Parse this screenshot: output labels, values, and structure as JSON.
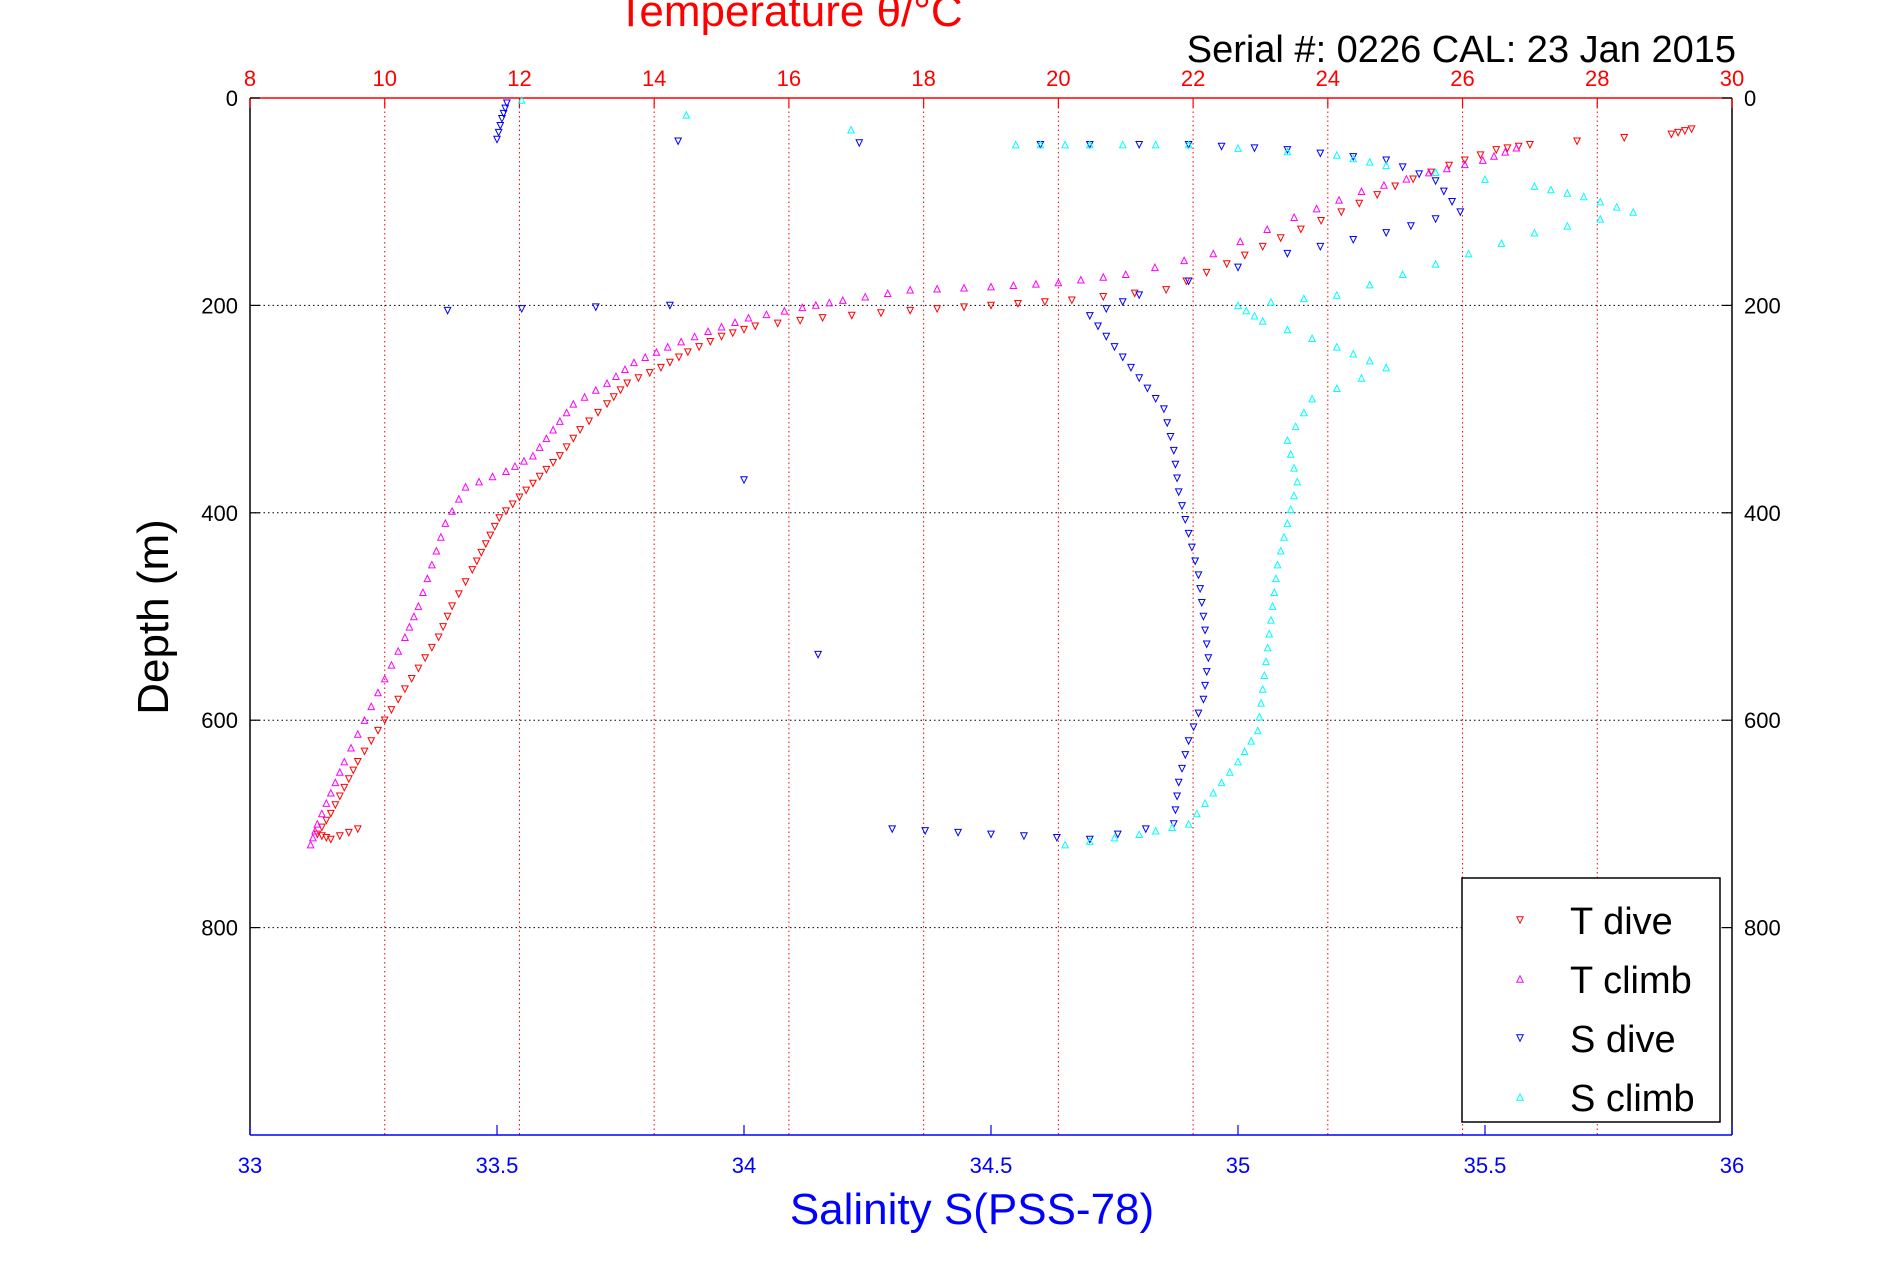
{
  "header": {
    "top_title": "Temperature θ/°C",
    "serial": "Serial #: 0226  CAL: 23 Jan 2015"
  },
  "colors": {
    "temp_axis": "#ff0000",
    "sal_axis": "#0000ff",
    "t_dive": "#ff0000",
    "t_climb": "#ff00ff",
    "s_dive": "#0000ff",
    "s_climb": "#00ffff",
    "grid": "#000000",
    "frame": "#000000"
  },
  "chart_data": {
    "type": "scatter",
    "title": "Temperature θ/°C",
    "ylabel": "Depth (m)",
    "xlabel": "Salinity S(PSS-78)",
    "x_top": {
      "label": "Temperature θ/°C",
      "range": [
        8,
        30
      ],
      "ticks": [
        "8",
        "10",
        "12",
        "14",
        "16",
        "18",
        "20",
        "22",
        "24",
        "26",
        "28",
        "30"
      ]
    },
    "x_bottom": {
      "label": "Salinity S(PSS-78)",
      "range": [
        33,
        36
      ],
      "ticks": [
        "33",
        "33.5",
        "34",
        "34.5",
        "35",
        "35.5",
        "36"
      ]
    },
    "y": {
      "label": "Depth (m)",
      "range": [
        0,
        1000
      ],
      "reversed": true,
      "ticks": [
        "0",
        "200",
        "400",
        "600",
        "800"
      ]
    },
    "grid": true,
    "legend_position": "bottom-right",
    "series": [
      {
        "name": "T dive",
        "axis": "temperature",
        "marker": "triangle-down",
        "points": [
          [
            29.4,
            30
          ],
          [
            29.1,
            35
          ],
          [
            27.0,
            45
          ],
          [
            26.5,
            50
          ],
          [
            25.8,
            65
          ],
          [
            25.0,
            85
          ],
          [
            24.2,
            110
          ],
          [
            23.3,
            135
          ],
          [
            22.5,
            160
          ],
          [
            21.6,
            185
          ],
          [
            20.2,
            195
          ],
          [
            19.0,
            200
          ],
          [
            17.8,
            205
          ],
          [
            16.5,
            212
          ],
          [
            15.5,
            220
          ],
          [
            15.0,
            230
          ],
          [
            14.5,
            245
          ],
          [
            14.1,
            260
          ],
          [
            13.6,
            275
          ],
          [
            13.3,
            295
          ],
          [
            12.9,
            320
          ],
          [
            12.6,
            345
          ],
          [
            12.3,
            365
          ],
          [
            12.0,
            385
          ],
          [
            11.7,
            405
          ],
          [
            11.5,
            430
          ],
          [
            11.3,
            455
          ],
          [
            11.0,
            490
          ],
          [
            10.8,
            520
          ],
          [
            10.5,
            550
          ],
          [
            10.2,
            580
          ],
          [
            9.9,
            610
          ],
          [
            9.6,
            640
          ],
          [
            9.4,
            665
          ],
          [
            9.2,
            690
          ],
          [
            9.0,
            710
          ],
          [
            9.2,
            715
          ],
          [
            9.6,
            705
          ]
        ]
      },
      {
        "name": "T climb",
        "axis": "temperature",
        "marker": "triangle-up",
        "points": [
          [
            26.8,
            48
          ],
          [
            26.3,
            60
          ],
          [
            25.5,
            72
          ],
          [
            24.5,
            90
          ],
          [
            23.5,
            115
          ],
          [
            22.3,
            150
          ],
          [
            21.0,
            170
          ],
          [
            20.0,
            178
          ],
          [
            19.0,
            182
          ],
          [
            17.8,
            185
          ],
          [
            16.8,
            195
          ],
          [
            16.2,
            202
          ],
          [
            15.4,
            212
          ],
          [
            14.8,
            225
          ],
          [
            14.2,
            240
          ],
          [
            13.7,
            255
          ],
          [
            13.3,
            275
          ],
          [
            12.8,
            295
          ],
          [
            12.5,
            320
          ],
          [
            12.2,
            345
          ],
          [
            11.8,
            360
          ],
          [
            11.2,
            375
          ],
          [
            10.9,
            410
          ],
          [
            10.7,
            450
          ],
          [
            10.5,
            490
          ],
          [
            10.3,
            520
          ],
          [
            10.0,
            560
          ],
          [
            9.7,
            600
          ],
          [
            9.4,
            640
          ],
          [
            9.2,
            670
          ],
          [
            9.0,
            700
          ],
          [
            8.9,
            720
          ]
        ]
      },
      {
        "name": "S dive",
        "axis": "salinity",
        "marker": "triangle-down",
        "points": [
          [
            33.52,
            5
          ],
          [
            33.51,
            20
          ],
          [
            33.5,
            40
          ],
          [
            34.6,
            45
          ],
          [
            34.9,
            45
          ],
          [
            35.1,
            50
          ],
          [
            35.3,
            60
          ],
          [
            35.4,
            80
          ],
          [
            35.45,
            110
          ],
          [
            35.3,
            130
          ],
          [
            35.1,
            150
          ],
          [
            34.8,
            190
          ],
          [
            34.7,
            210
          ],
          [
            34.75,
            240
          ],
          [
            34.8,
            270
          ],
          [
            34.85,
            300
          ],
          [
            34.87,
            340
          ],
          [
            34.88,
            380
          ],
          [
            34.9,
            420
          ],
          [
            34.92,
            460
          ],
          [
            34.93,
            500
          ],
          [
            34.94,
            540
          ],
          [
            34.93,
            580
          ],
          [
            34.9,
            620
          ],
          [
            34.88,
            660
          ],
          [
            34.87,
            700
          ],
          [
            34.7,
            715
          ],
          [
            34.5,
            710
          ],
          [
            34.3,
            705
          ],
          [
            33.85,
            200
          ],
          [
            33.4,
            205
          ]
        ]
      },
      {
        "name": "S climb",
        "axis": "salinity",
        "marker": "triangle-up",
        "points": [
          [
            33.55,
            2
          ],
          [
            34.55,
            45
          ],
          [
            34.7,
            45
          ],
          [
            34.9,
            45
          ],
          [
            35.2,
            55
          ],
          [
            35.3,
            65
          ],
          [
            35.6,
            85
          ],
          [
            35.7,
            95
          ],
          [
            35.8,
            110
          ],
          [
            35.6,
            130
          ],
          [
            35.4,
            160
          ],
          [
            35.2,
            190
          ],
          [
            35.0,
            200
          ],
          [
            35.05,
            215
          ],
          [
            35.2,
            240
          ],
          [
            35.3,
            260
          ],
          [
            35.15,
            290
          ],
          [
            35.1,
            330
          ],
          [
            35.12,
            370
          ],
          [
            35.1,
            410
          ],
          [
            35.08,
            450
          ],
          [
            35.07,
            490
          ],
          [
            35.06,
            530
          ],
          [
            35.05,
            570
          ],
          [
            35.04,
            610
          ],
          [
            35.0,
            640
          ],
          [
            34.95,
            670
          ],
          [
            34.9,
            700
          ],
          [
            34.8,
            710
          ],
          [
            34.65,
            720
          ]
        ]
      }
    ]
  }
}
